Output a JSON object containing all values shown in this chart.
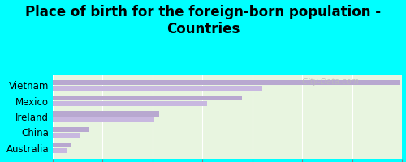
{
  "title": "Place of birth for the foreign-born population -\nCountries",
  "categories": [
    "Vietnam",
    "Mexico",
    "Ireland",
    "China",
    "Australia"
  ],
  "values1": [
    348,
    190,
    107,
    37,
    19
  ],
  "values2": [
    210,
    155,
    102,
    27,
    14
  ],
  "bar_color1": "#b8a8d0",
  "bar_color2": "#c8b8e0",
  "bg_plot": "#e8f5e0",
  "bg_figure": "#00ffff",
  "xlim": [
    0,
    350
  ],
  "xticks": [
    0,
    50,
    100,
    150,
    200,
    250,
    300,
    350
  ],
  "watermark": "  City-Data.com",
  "title_fontsize": 12,
  "tick_fontsize": 8.5
}
